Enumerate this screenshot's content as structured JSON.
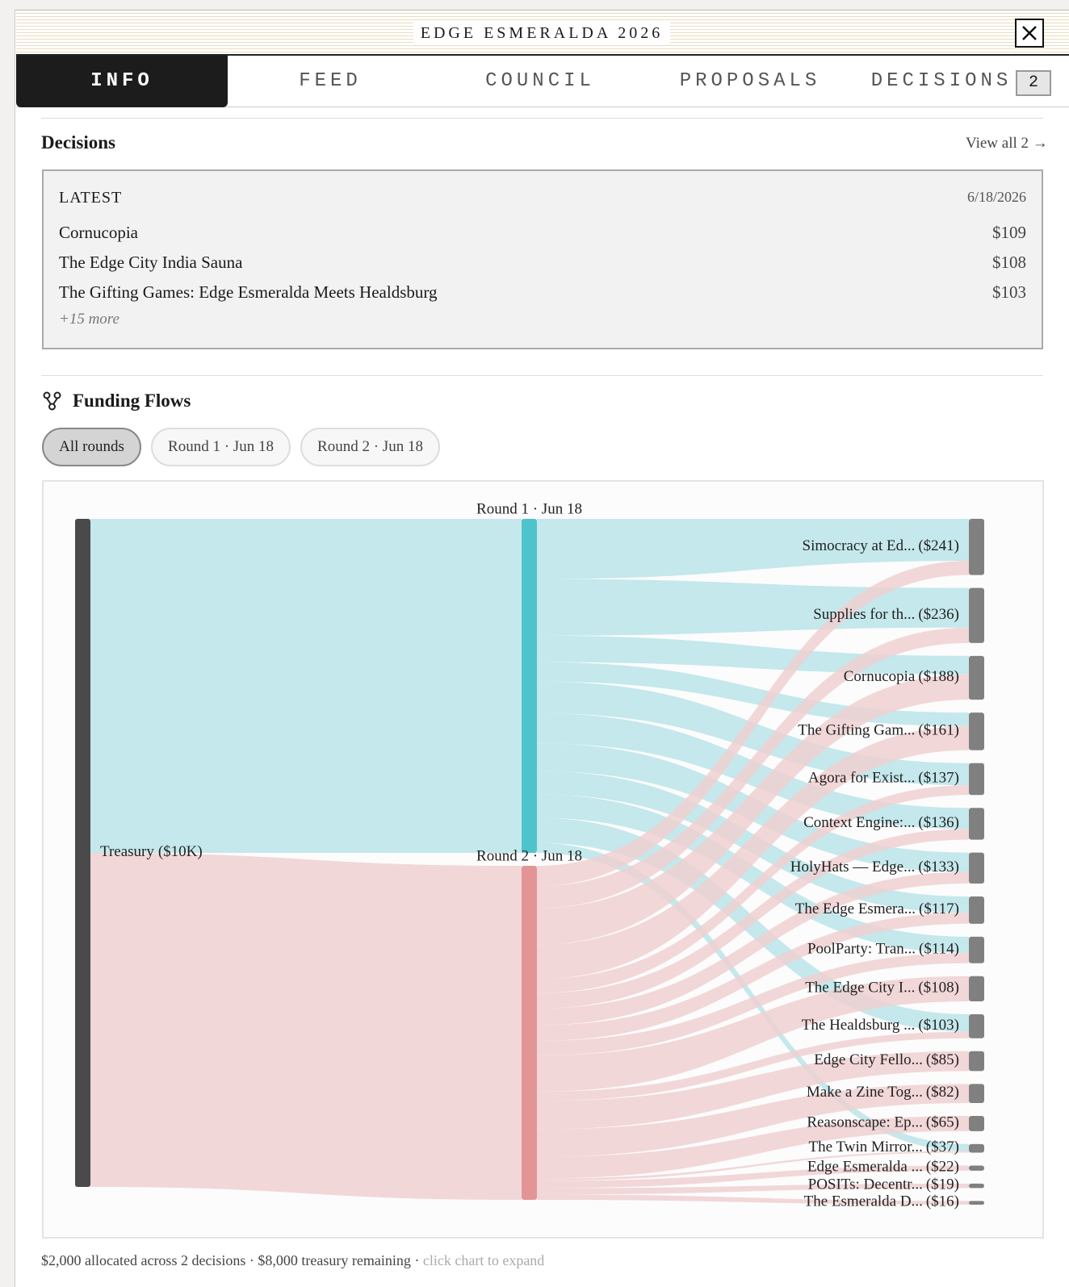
{
  "header": {
    "title": "EDGE ESMERALDA 2026"
  },
  "tabs": [
    "INFO",
    "FEED",
    "COUNCIL",
    "PROPOSALS",
    "DECISIONS"
  ],
  "tab_badge": "2",
  "decisions": {
    "heading": "Decisions",
    "view_all": "View all 2 →",
    "latest": {
      "label": "LATEST",
      "date": "6/18/2026",
      "items": [
        {
          "name": "Cornucopia",
          "amount": "$109"
        },
        {
          "name": "The Edge City India Sauna",
          "amount": "$108"
        },
        {
          "name": "The Gifting Games: Edge Esmeralda Meets Healdsburg",
          "amount": "$103"
        }
      ],
      "more": "+15 more"
    }
  },
  "funding_flows": {
    "heading": "Funding Flows",
    "filters": [
      "All rounds",
      "Round 1 · Jun 18",
      "Round 2 · Jun 18"
    ],
    "summary": "$2,000 allocated across 2 decisions · $8,000 treasury remaining ·",
    "hint": "click chart to expand"
  },
  "chart_data": {
    "type": "sankey",
    "source": {
      "name": "Treasury",
      "value": 10000,
      "value_label": "($10K)",
      "color": "#4a4a4a"
    },
    "series": [
      {
        "name": "Round 1 · Jun 18",
        "value": 1000,
        "color": "#4fc3cc",
        "link_color": "#bde7ec",
        "values": [
          180,
          170,
          79,
          58,
          95,
          90,
          83,
          70,
          70,
          0,
          75,
          0,
          0,
          0,
          30,
          0,
          0,
          0
        ]
      },
      {
        "name": "Round 2 · Jun 18",
        "value": 1000,
        "color": "#e39595",
        "link_color": "#f3d3d5",
        "values": [
          61,
          66,
          109,
          103,
          42,
          46,
          50,
          47,
          44,
          108,
          28,
          85,
          82,
          65,
          7,
          22,
          19,
          16
        ]
      }
    ],
    "categories": [
      "Simocracy at Ed...",
      "Supplies for th...",
      "Cornucopia",
      "The Gifting Gam...",
      "Agora for Exist...",
      "Context Engine:...",
      "HolyHats — Edge...",
      "The Edge Esmera...",
      "PoolParty: Tran...",
      "The Edge City I...",
      "The Healdsburg ...",
      "Edge City Fello...",
      "Make a Zine Tog...",
      "Reasonscape: Ep...",
      "The Twin Mirror...",
      "Edge Esmeralda ...",
      "POSITs: Decentr...",
      "The Esmeralda D..."
    ],
    "totals": [
      241,
      236,
      188,
      161,
      137,
      136,
      133,
      117,
      114,
      108,
      103,
      85,
      82,
      65,
      37,
      22,
      19,
      16
    ],
    "total_labels": [
      "($241)",
      "($236)",
      "($188)",
      "($161)",
      "($137)",
      "($136)",
      "($133)",
      "($117)",
      "($114)",
      "($108)",
      "($103)",
      "($85)",
      "($82)",
      "($65)",
      "($37)",
      "($22)",
      "($19)",
      "($16)"
    ],
    "node_color": "#808080"
  }
}
